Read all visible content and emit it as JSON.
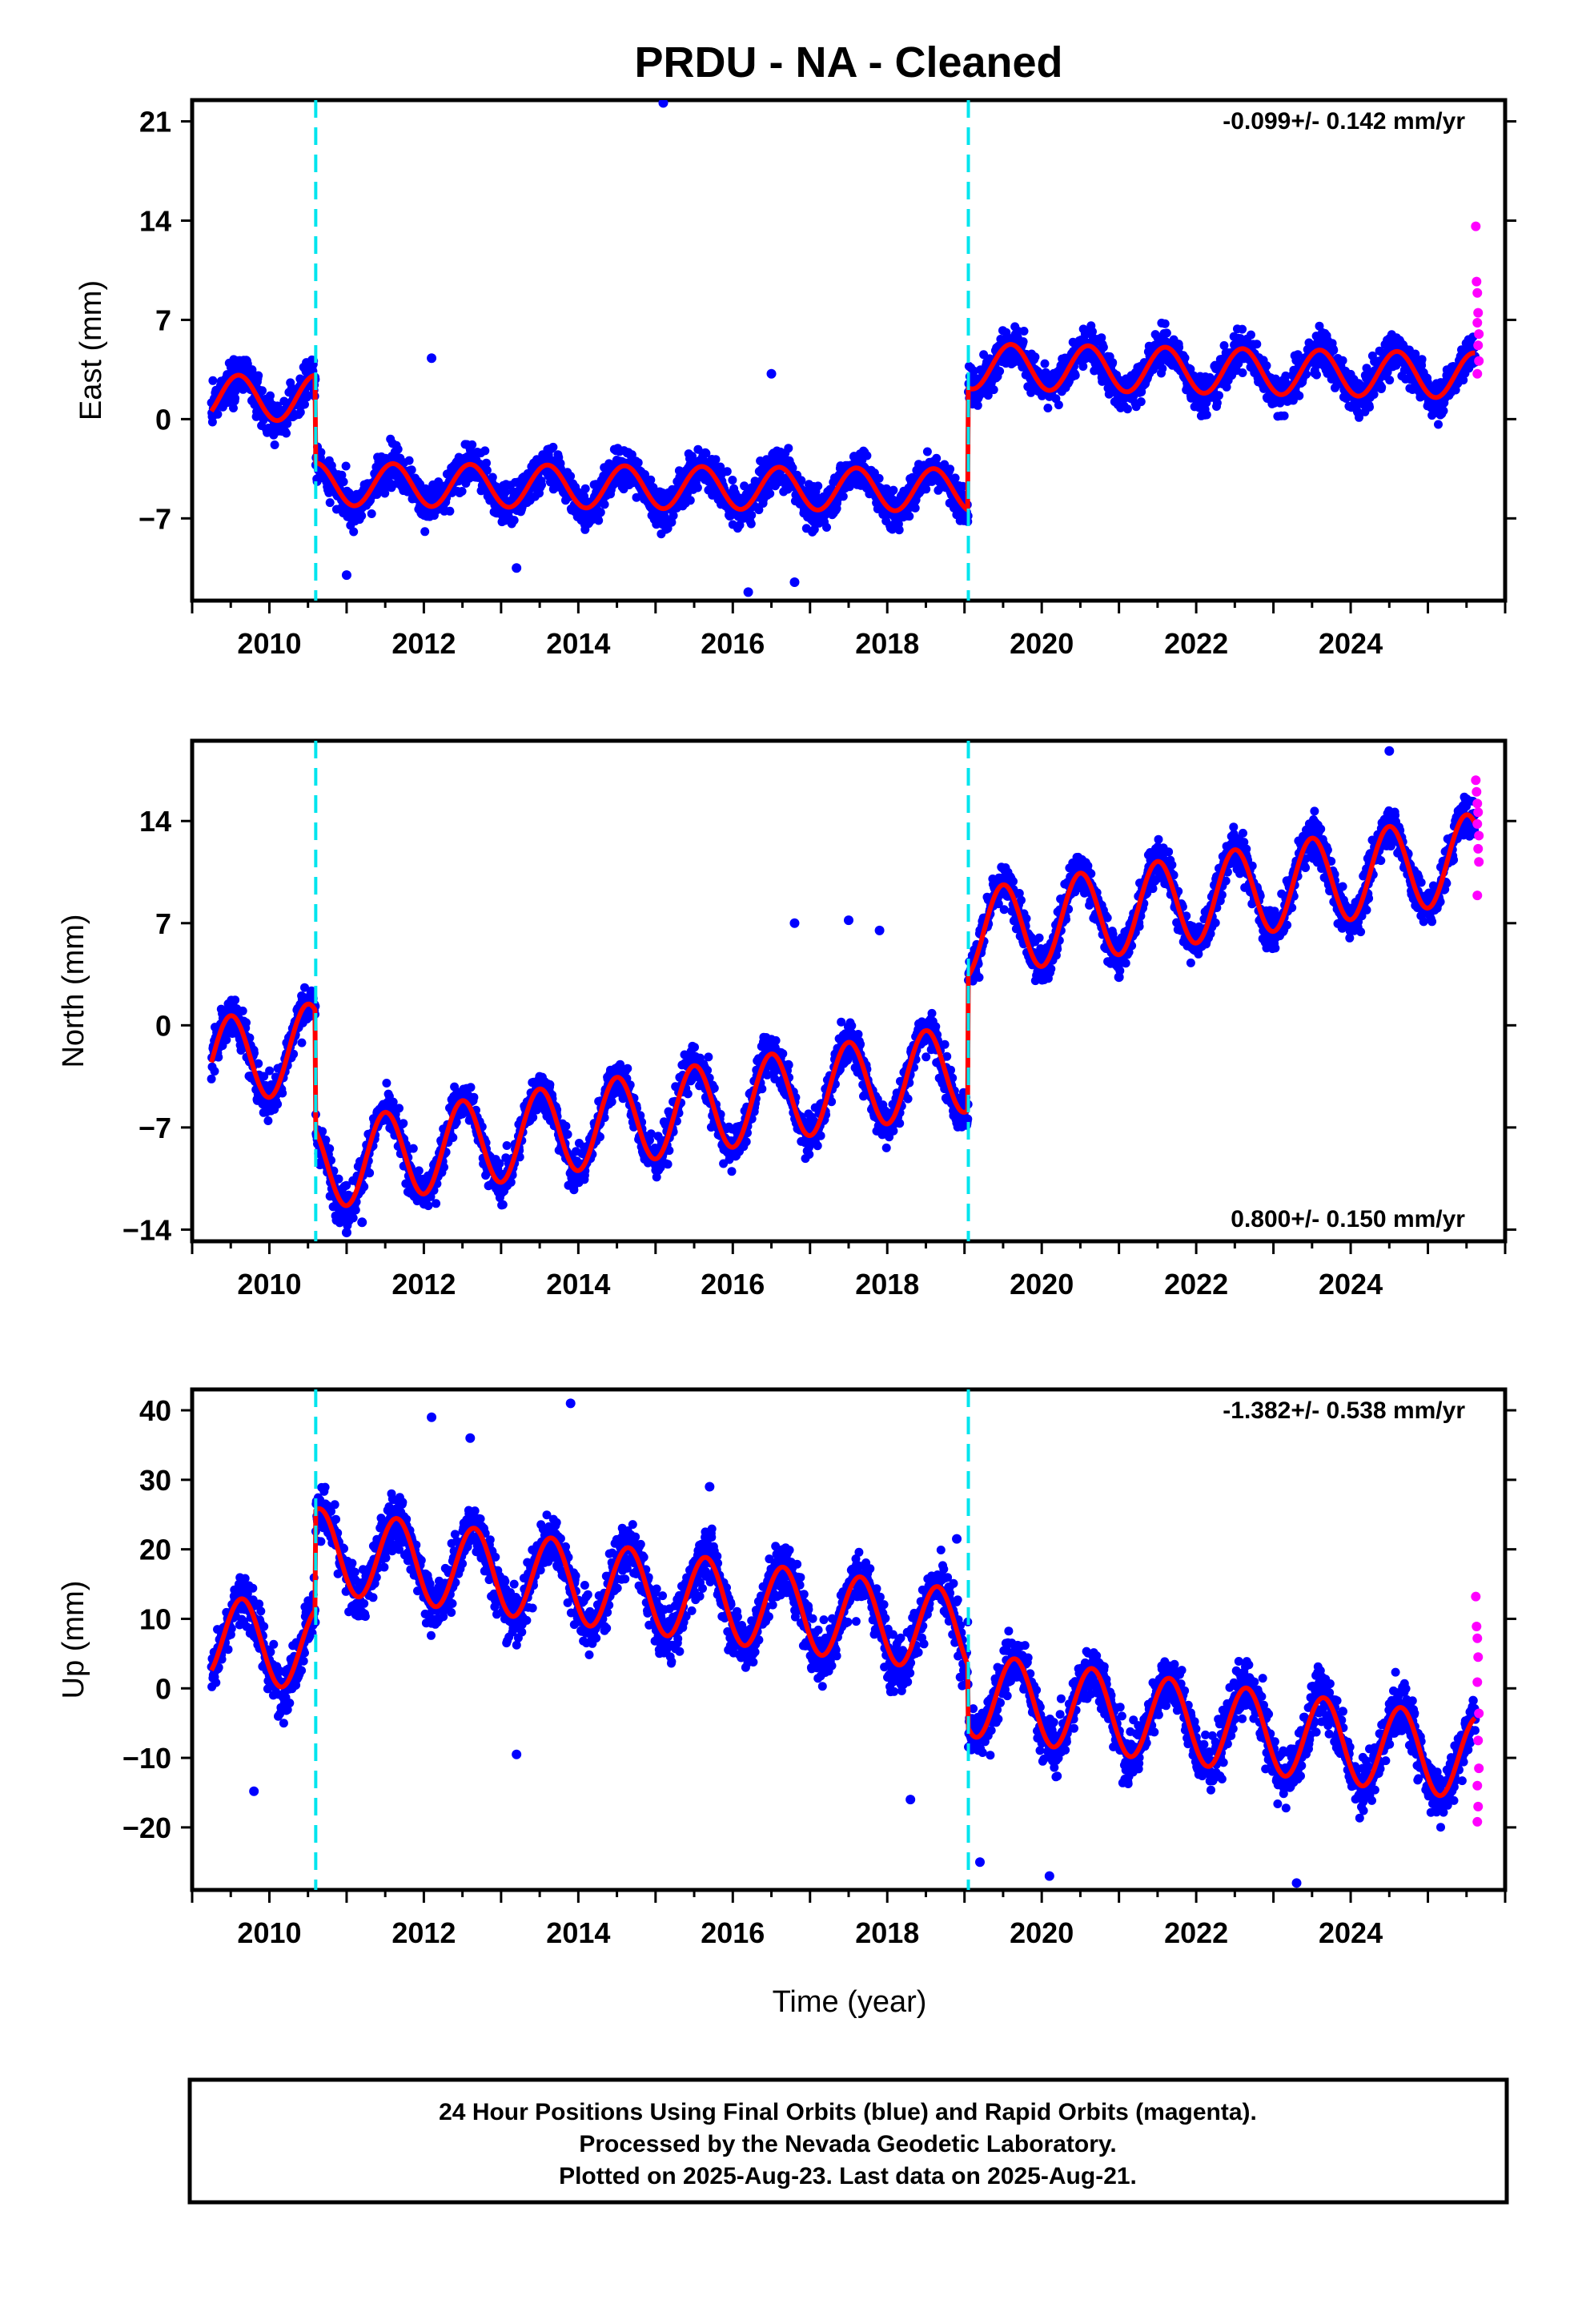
{
  "chart_data": {
    "type": "scatter",
    "title": "PRDU  - NA - Cleaned",
    "xlabel": "Time (year)",
    "x_ticks": [
      "2010",
      "2012",
      "2014",
      "2016",
      "2018",
      "2020",
      "2022",
      "2024"
    ],
    "xlim": [
      2009.0,
      2026.0
    ],
    "offsets": [
      2010.6,
      2019.05
    ],
    "colors": {
      "final_orbits": "#0000ff",
      "rapid_orbits": "#ff00ff",
      "model_fit": "#ff0000",
      "offset_lines": "#00e5ee"
    },
    "panels": [
      {
        "component": "east",
        "ylabel": "East (mm)",
        "ylim": [
          -12.8,
          22.5
        ],
        "y_ticks": [
          21,
          14,
          7,
          0,
          -7
        ],
        "y_tick_labels": [
          "21",
          "14",
          "7",
          "0",
          "−7"
        ],
        "rate_label": "-0.099+/- 0.142 mm/yr",
        "rate_position": "top-right",
        "model": {
          "segments": [
            {
              "start": 2009.25,
              "end": 2010.6,
              "level": 1.5,
              "slope": 0.0,
              "amp": 1.6,
              "phase_peak": 0.6
            },
            {
              "start": 2010.6,
              "end": 2019.05,
              "level": -4.8,
              "slope": -0.05,
              "amp": 1.5,
              "phase_peak": 0.6
            },
            {
              "start": 2019.05,
              "end": 2025.62,
              "level": 3.4,
              "slope": -0.1,
              "amp": 1.6,
              "phase_peak": 0.6
            }
          ],
          "noise": 1.8
        },
        "outliers": [
          [
            2015.1,
            22.3
          ],
          [
            2016.5,
            3.2
          ],
          [
            2012.1,
            4.3
          ],
          [
            2016.2,
            -12.2
          ],
          [
            2011.0,
            -11.0
          ],
          [
            2013.2,
            -10.5
          ],
          [
            2016.8,
            -11.5
          ]
        ],
        "rapid_points": [
          [
            2025.62,
            13.6
          ],
          [
            2025.63,
            9.7
          ],
          [
            2025.64,
            8.9
          ],
          [
            2025.65,
            7.5
          ],
          [
            2025.64,
            6.8
          ],
          [
            2025.66,
            6.0
          ],
          [
            2025.65,
            5.2
          ],
          [
            2025.66,
            4.1
          ],
          [
            2025.64,
            3.2
          ]
        ]
      },
      {
        "component": "north",
        "ylabel": "North (mm)",
        "ylim": [
          -14.8,
          19.5
        ],
        "y_ticks": [
          14,
          7,
          0,
          -7,
          -14
        ],
        "y_tick_labels": [
          "14",
          "7",
          "0",
          "−7",
          "−14"
        ],
        "rate_label": "0.800+/- 0.150 mm/yr",
        "rate_position": "bottom-right",
        "model": {
          "segments": [
            {
              "start": 2009.25,
              "end": 2010.6,
              "level": -2.0,
              "slope": 0.8,
              "amp": 3.0,
              "phase_peak": 0.5
            },
            {
              "start": 2010.6,
              "end": 2019.05,
              "level": -6.3,
              "slope": 0.8,
              "amp": 3.0,
              "phase_peak": 0.5
            },
            {
              "start": 2019.05,
              "end": 2025.62,
              "level": 8.9,
              "slope": 0.8,
              "amp": 3.0,
              "phase_peak": 0.5
            }
          ],
          "noise": 1.8
        },
        "outliers": [
          [
            2011.0,
            -14.2
          ],
          [
            2011.2,
            -13.5
          ],
          [
            2017.5,
            7.2
          ],
          [
            2017.9,
            6.5
          ],
          [
            2016.8,
            7.0
          ],
          [
            2024.5,
            18.8
          ],
          [
            2021.0,
            3.3
          ]
        ],
        "rapid_points": [
          [
            2025.62,
            16.8
          ],
          [
            2025.63,
            16.0
          ],
          [
            2025.64,
            15.2
          ],
          [
            2025.65,
            14.6
          ],
          [
            2025.64,
            13.8
          ],
          [
            2025.66,
            13.0
          ],
          [
            2025.65,
            12.1
          ],
          [
            2025.66,
            11.2
          ],
          [
            2025.64,
            8.9
          ]
        ]
      },
      {
        "component": "up",
        "ylabel": "Up (mm)",
        "ylim": [
          -29,
          43
        ],
        "y_ticks": [
          40,
          30,
          20,
          10,
          0,
          -10,
          -20
        ],
        "y_tick_labels": [
          "40",
          "30",
          "20",
          "10",
          "0",
          "−10",
          "−20"
        ],
        "rate_label": "-1.382+/- 0.538 mm/yr",
        "rate_position": "top-right",
        "model": {
          "segments": [
            {
              "start": 2009.25,
              "end": 2010.6,
              "level": 6.5,
              "slope": -1.4,
              "amp": 6.0,
              "phase_peak": 0.65
            },
            {
              "start": 2010.6,
              "end": 2019.05,
              "level": 14.0,
              "slope": -1.4,
              "amp": 6.0,
              "phase_peak": 0.65
            },
            {
              "start": 2019.05,
              "end": 2025.62,
              "level": -5.5,
              "slope": -1.4,
              "amp": 6.0,
              "phase_peak": 0.65
            }
          ],
          "noise": 5.0
        },
        "outliers": [
          [
            2013.9,
            41.0
          ],
          [
            2012.1,
            39.0
          ],
          [
            2012.6,
            36.0
          ],
          [
            2015.7,
            29.0
          ],
          [
            2018.9,
            21.5
          ],
          [
            2019.2,
            -25.0
          ],
          [
            2020.1,
            -27.0
          ],
          [
            2023.3,
            -28.0
          ],
          [
            2009.8,
            -14.8
          ],
          [
            2013.2,
            -9.5
          ],
          [
            2018.3,
            -16.0
          ]
        ],
        "rapid_points": [
          [
            2025.62,
            13.2
          ],
          [
            2025.63,
            8.9
          ],
          [
            2025.64,
            7.2
          ],
          [
            2025.65,
            4.5
          ],
          [
            2025.64,
            0.9
          ],
          [
            2025.66,
            -3.6
          ],
          [
            2025.65,
            -7.5
          ],
          [
            2025.66,
            -11.5
          ],
          [
            2025.64,
            -14.0
          ],
          [
            2025.65,
            -17.0
          ],
          [
            2025.64,
            -19.2
          ]
        ]
      }
    ],
    "footer": [
      "24 Hour Positions Using Final Orbits (blue) and Rapid Orbits (magenta).",
      "Processed by the Nevada Geodetic Laboratory.",
      "Plotted on 2025-Aug-23. Last data on 2025-Aug-21."
    ]
  }
}
